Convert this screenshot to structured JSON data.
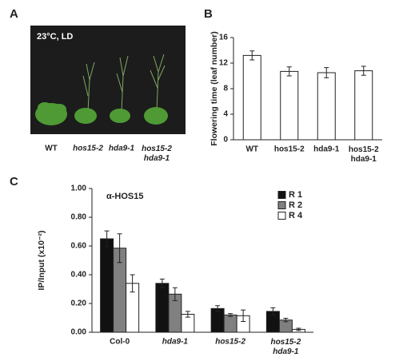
{
  "panel_a": {
    "label": "A",
    "condition": "23°C, LD",
    "plants": [
      "WT",
      "hos15-2",
      "hda9-1",
      "hos15-2 hda9-1"
    ]
  },
  "chart_data": [
    {
      "type": "bar",
      "label": "B",
      "ylabel": "Flowering time (leaf number)",
      "categories": [
        "WT",
        "hos15-2",
        "hda9-1",
        "hos15-2 hda9-1"
      ],
      "values": [
        13.2,
        10.7,
        10.5,
        10.8
      ],
      "errors": [
        0.7,
        0.7,
        0.8,
        0.7
      ],
      "color": "#ffffff",
      "ylim": [
        0,
        16
      ],
      "yticks": [
        0,
        4,
        8,
        12,
        16
      ]
    },
    {
      "type": "grouped-bar",
      "label": "C",
      "ylabel": "IP/Input (x10⁻²)",
      "annotation": "α-HOS15",
      "categories": [
        "Col-0",
        "hda9-1",
        "hos15-2",
        "hos15-2 hda9-1"
      ],
      "series": [
        {
          "name": "R 1",
          "color": "#111111",
          "values": [
            0.65,
            0.34,
            0.165,
            0.145
          ],
          "errors": [
            0.055,
            0.03,
            0.02,
            0.025
          ]
        },
        {
          "name": "R 2",
          "color": "#808080",
          "values": [
            0.585,
            0.265,
            0.12,
            0.085
          ],
          "errors": [
            0.1,
            0.045,
            0.01,
            0.012
          ]
        },
        {
          "name": "R 4",
          "color": "#ffffff",
          "values": [
            0.34,
            0.125,
            0.115,
            0.02
          ],
          "errors": [
            0.06,
            0.02,
            0.04,
            0.008
          ]
        }
      ],
      "ylim": [
        0,
        1
      ],
      "yticks": [
        {
          "value": 0,
          "label": "0.00"
        },
        {
          "value": 0.2,
          "label": "0.20"
        },
        {
          "value": 0.4,
          "label": "0.40"
        },
        {
          "value": 0.6,
          "label": "0.60"
        },
        {
          "value": 0.8,
          "label": "0.80"
        },
        {
          "value": 1,
          "label": "1.00"
        }
      ],
      "legend": "top-right"
    }
  ]
}
